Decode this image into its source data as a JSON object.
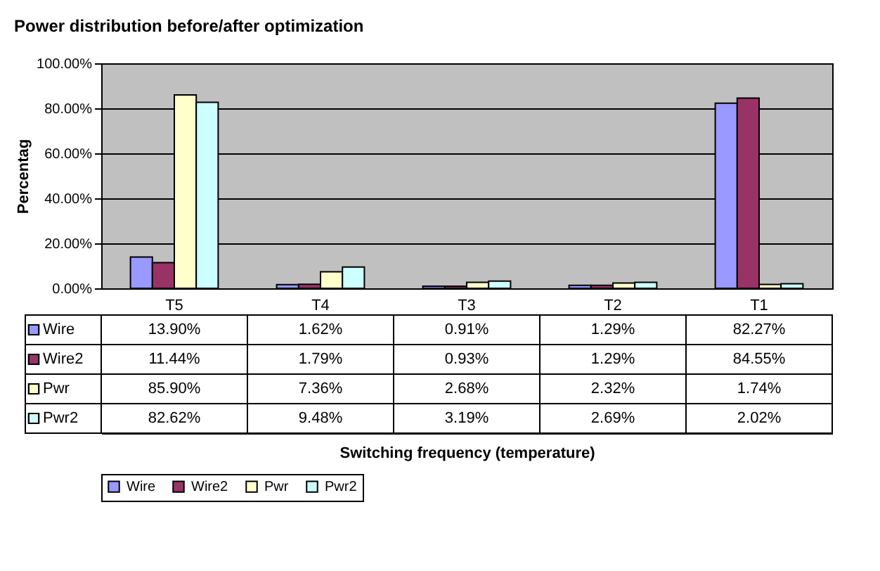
{
  "chart_data": {
    "type": "bar",
    "title": "Power distribution before/after optimization",
    "annotations": [
      "Switching frequency (temperature)"
    ],
    "ylabel": "Percentag",
    "categories": [
      "T5",
      "T4",
      "T3",
      "T2",
      "T1"
    ],
    "series": [
      {
        "name": "Wire",
        "color": "#9999ff",
        "values": [
          13.9,
          1.62,
          0.91,
          1.29,
          82.27
        ],
        "value_labels": [
          "13.90%",
          "1.62%",
          "0.91%",
          "1.29%",
          "82.27%"
        ]
      },
      {
        "name": "Wire2",
        "color": "#993366",
        "values": [
          11.44,
          1.79,
          0.93,
          1.29,
          84.55
        ],
        "value_labels": [
          "11.44%",
          "1.79%",
          "0.93%",
          "1.29%",
          "84.55%"
        ]
      },
      {
        "name": "Pwr",
        "color": "#ffffcc",
        "values": [
          85.9,
          7.36,
          2.68,
          2.32,
          1.74
        ],
        "value_labels": [
          "85.90%",
          "7.36%",
          "2.68%",
          "2.32%",
          "1.74%"
        ]
      },
      {
        "name": "Pwr2",
        "color": "#ccffff",
        "values": [
          82.62,
          9.48,
          3.19,
          2.69,
          2.02
        ],
        "value_labels": [
          "82.62%",
          "9.48%",
          "3.19%",
          "2.69%",
          "2.02%"
        ]
      }
    ],
    "ylim": [
      0,
      100
    ],
    "yticks": [
      {
        "value": 0,
        "label": "0.00%"
      },
      {
        "value": 20,
        "label": "20.00%"
      },
      {
        "value": 40,
        "label": "40.00%"
      },
      {
        "value": 60,
        "label": "60.00%"
      },
      {
        "value": 80,
        "label": "80.00%"
      },
      {
        "value": 100,
        "label": "100.00%"
      }
    ],
    "grid": true,
    "legend": "bottom"
  }
}
